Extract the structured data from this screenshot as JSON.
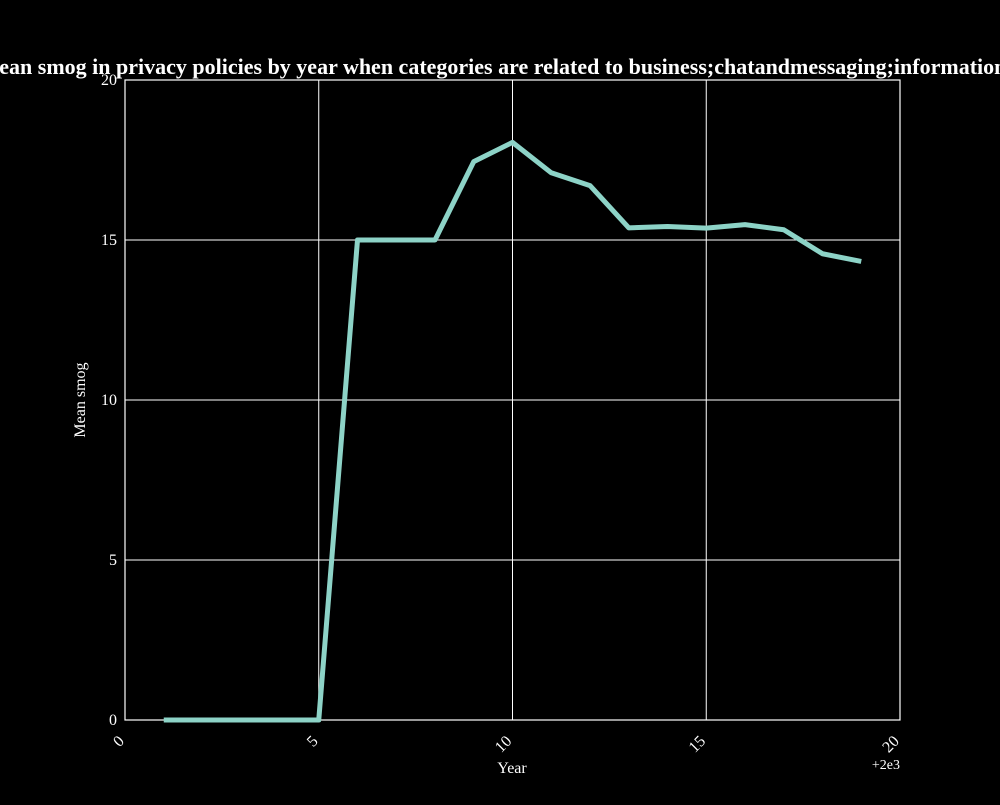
{
  "chart_data": {
    "type": "line",
    "title": "Mean smog in privacy policies by year when categories are related to business;chatandmessaging;informationtech",
    "xlabel": "Year",
    "ylabel": "Mean smog",
    "x_offset_label": "+2e3",
    "xlim": [
      0,
      20
    ],
    "ylim": [
      0,
      20
    ],
    "x_ticks": [
      0,
      5,
      10,
      15,
      20
    ],
    "x_tick_labels": [
      "0",
      "5",
      "10",
      "15",
      "20"
    ],
    "y_ticks": [
      0,
      5,
      10,
      15,
      20
    ],
    "y_tick_labels": [
      "0",
      "5",
      "10",
      "15",
      "20"
    ],
    "grid": true,
    "series": [
      {
        "color": "#8dd3c7",
        "x": [
          1,
          2,
          3,
          4,
          5,
          6,
          7,
          8,
          9,
          10,
          11,
          12,
          13,
          14,
          15,
          16,
          17,
          18,
          19
        ],
        "values": [
          0,
          0,
          0,
          0,
          0,
          15.0,
          15.0,
          15.0,
          17.45,
          18.05,
          17.1,
          16.7,
          15.38,
          15.42,
          15.37,
          15.48,
          15.32,
          14.57,
          14.33
        ]
      }
    ]
  }
}
